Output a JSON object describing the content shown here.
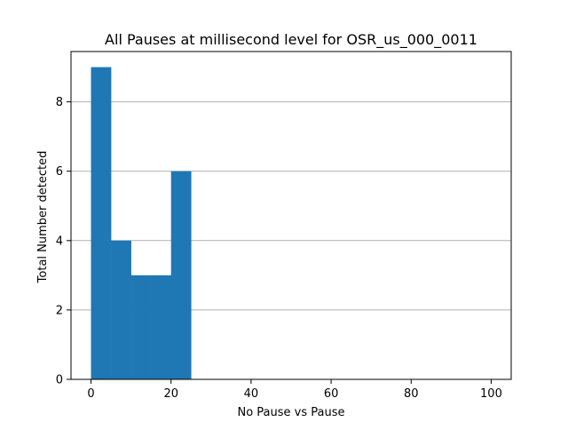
{
  "chart_data": {
    "type": "bar",
    "title": "All Pauses at millisecond level for OSR_us_000_0011",
    "xlabel": "No Pause vs Pause",
    "ylabel": "Total Number detected",
    "bins": [
      {
        "x0": 0,
        "x1": 5,
        "value": 9
      },
      {
        "x0": 5,
        "x1": 10,
        "value": 4
      },
      {
        "x0": 10,
        "x1": 15,
        "value": 3
      },
      {
        "x0": 15,
        "x1": 20,
        "value": 3
      },
      {
        "x0": 20,
        "x1": 25,
        "value": 6
      }
    ],
    "xlim": [
      -5,
      105
    ],
    "ylim": [
      0,
      9.45
    ],
    "xticks": [
      0,
      20,
      40,
      60,
      80,
      100
    ],
    "xtick_labels": [
      "0",
      "20",
      "40",
      "60",
      "80",
      "100"
    ],
    "yticks": [
      0,
      2,
      4,
      6,
      8
    ],
    "ytick_labels": [
      "0",
      "2",
      "4",
      "6",
      "8"
    ],
    "grid": "y-axis horizontal lines",
    "legend": "none",
    "colors": {
      "bar": "#1f77b4",
      "grid": "#b0b0b0",
      "axis": "#000000",
      "background": "#ffffff"
    }
  }
}
